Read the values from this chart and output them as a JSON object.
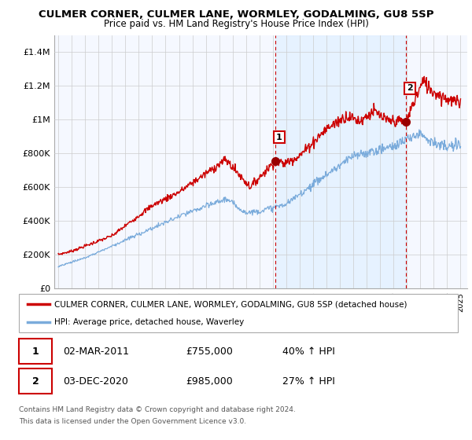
{
  "title": "CULMER CORNER, CULMER LANE, WORMLEY, GODALMING, GU8 5SP",
  "subtitle": "Price paid vs. HM Land Registry's House Price Index (HPI)",
  "ylabel_ticks": [
    "£0",
    "£200K",
    "£400K",
    "£600K",
    "£800K",
    "£1M",
    "£1.2M",
    "£1.4M"
  ],
  "ylabel_values": [
    0,
    200000,
    400000,
    600000,
    800000,
    1000000,
    1200000,
    1400000
  ],
  "ylim": [
    0,
    1500000
  ],
  "xlim_start": 1994.7,
  "xlim_end": 2025.5,
  "legend_line1": "CULMER CORNER, CULMER LANE, WORMLEY, GODALMING, GU8 5SP (detached house)",
  "legend_line2": "HPI: Average price, detached house, Waverley",
  "line_color_red": "#cc0000",
  "line_color_blue": "#7aabdb",
  "marker_color_red": "#990000",
  "point1_label": "1",
  "point1_x": 2011.17,
  "point1_y": 755000,
  "point1_text": "02-MAR-2011",
  "point1_price": "£755,000",
  "point1_hpi": "40% ↑ HPI",
  "point2_label": "2",
  "point2_x": 2020.92,
  "point2_y": 985000,
  "point2_text": "03-DEC-2020",
  "point2_price": "£985,000",
  "point2_hpi": "27% ↑ HPI",
  "footer1": "Contains HM Land Registry data © Crown copyright and database right 2024.",
  "footer2": "This data is licensed under the Open Government Licence v3.0.",
  "background_color": "#f5f8ff",
  "grid_color": "#cccccc",
  "vline_color": "#cc0000",
  "table_border_color": "#cc0000",
  "shade_color": "#ddeeff"
}
